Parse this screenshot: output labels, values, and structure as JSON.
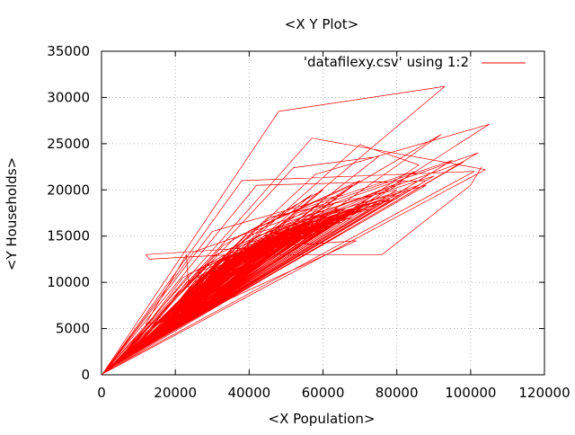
{
  "chart_data": {
    "type": "line",
    "title": "<X Y Plot>",
    "xlabel": "<X Population>",
    "ylabel": "<Y Households>",
    "xlim": [
      0,
      120000
    ],
    "ylim": [
      0,
      35000
    ],
    "xticks": [
      0,
      20000,
      40000,
      60000,
      80000,
      100000,
      120000
    ],
    "yticks": [
      0,
      5000,
      10000,
      15000,
      20000,
      25000,
      30000,
      35000
    ],
    "grid": true,
    "legend_position": "top-right",
    "series": [
      {
        "name": "'datafilexy.csv' using 1:2",
        "color": "#ff0000",
        "x": [
          0,
          93000,
          48000,
          300,
          104000,
          57000,
          400,
          102000,
          25000,
          500,
          86000,
          70000,
          600,
          101000,
          38000,
          700,
          75000,
          52000,
          800,
          88000,
          42000,
          900,
          65000,
          30000,
          1000,
          105000,
          58000,
          1200,
          92000,
          62000,
          1400,
          80000,
          45000,
          1600,
          70000,
          36000,
          1800,
          98000,
          55000,
          2000,
          60000,
          33000,
          2200,
          85000,
          47000,
          2400,
          78000,
          29000,
          2600,
          68000,
          40000,
          2800,
          95000,
          53000,
          3000,
          72000,
          24000,
          3200,
          82000,
          44000,
          3400,
          63000,
          31000,
          3600,
          90000,
          50000,
          3800,
          57000,
          35000,
          4000,
          76000,
          27000,
          4200,
          66000,
          43000,
          4400,
          88000,
          39000,
          4600,
          59000,
          22000,
          4800,
          74000,
          46000,
          5000,
          83000,
          34000,
          5200,
          64000,
          41000,
          5400,
          71000,
          28000,
          5600,
          55000,
          37000,
          5800,
          79000,
          32000,
          6000,
          68000,
          49000,
          6200,
          61000,
          26000,
          6400,
          86000,
          42000,
          6600,
          52000,
          35000,
          6800,
          73000,
          30000,
          7000,
          65000,
          44000,
          7200,
          58000,
          23000,
          7400,
          81000,
          38000,
          7600,
          62000,
          33000,
          7800,
          70000,
          40000,
          8000,
          48000,
          29000,
          8200,
          77000,
          45000,
          8400,
          56000,
          31000,
          8600,
          67000,
          36000,
          8800,
          53000,
          27000,
          9000,
          72000,
          42000,
          9200,
          60000,
          34000,
          9400,
          50000,
          39000,
          9600,
          75000,
          30000,
          9800,
          63000,
          46000,
          10000,
          57000,
          25000,
          10200,
          69000,
          37000,
          10400,
          54000,
          33000,
          10600,
          66000,
          41000,
          10800,
          49000,
          28000,
          11000,
          71000,
          35000,
          11200,
          59000,
          43000,
          11400,
          64000,
          32000,
          11600,
          51000,
          38000,
          11800,
          68000,
          26000,
          12000,
          56000,
          40000,
          12200,
          62000,
          30000,
          12400,
          47000,
          36000,
          12600,
          73000,
          44000,
          12800,
          58000,
          34000,
          13000,
          65000,
          29000,
          13200,
          52000,
          39000,
          13400,
          60000,
          31000,
          13600,
          45000,
          35000,
          13800,
          67000,
          42000,
          14000,
          55000,
          27000,
          14200,
          61000,
          37000,
          14400,
          50000,
          33000,
          14600,
          70000,
          40000,
          14800,
          57000,
          30000,
          15000,
          63000,
          45000,
          15200,
          48000,
          35000,
          15400,
          66000,
          28000,
          15600,
          53000,
          38000,
          15800,
          59000,
          32000,
          16000,
          44000,
          36000,
          16200,
          68000,
          41000,
          16400,
          54000,
          29000,
          16600,
          62000,
          34000,
          16800,
          46000,
          39000,
          17000,
          71000,
          31000,
          17200,
          57000,
          43000,
          17400,
          64000,
          26000,
          17600,
          49000,
          37000,
          17800,
          60000,
          33000,
          18000,
          52000,
          40000,
          18200,
          67000,
          30000,
          18400,
          55000,
          35000,
          18600,
          47000,
          28000,
          18800,
          65000,
          42000,
          19000,
          58000,
          32000,
          19200,
          50000,
          38000,
          19400,
          62000,
          29000,
          19600,
          56000,
          36000,
          19800,
          45000,
          34000,
          20000,
          69000,
          40000,
          20200,
          53000,
          31000,
          20400,
          61000,
          37000,
          20600,
          48000,
          27000,
          20800,
          66000,
          44000,
          21000,
          54000,
          33000,
          21200,
          59000,
          39000,
          21400,
          46000,
          30000,
          21600,
          63000,
          35000,
          21800,
          51000,
          41000,
          22000,
          57000,
          28000,
          22200,
          44000,
          36000,
          22400,
          64000,
          32000,
          22600,
          52000,
          38000,
          22800,
          60000,
          30000,
          23000,
          47000,
          34000,
          23200,
          58000,
          40000,
          23400,
          50000,
          29000,
          23600,
          55000,
          37000,
          23800,
          43000,
          33000,
          24000,
          62000,
          26000,
          24200,
          23000,
          12000,
          24400,
          62000,
          63000,
          24600,
          69000,
          12000,
          13000,
          35000,
          68000,
          76000,
          100000,
          103000
        ],
        "y": [
          0,
          31200,
          28500,
          100,
          22200,
          25600,
          150,
          24000,
          13300,
          200,
          22700,
          24900,
          250,
          22000,
          21000,
          300,
          23600,
          22400,
          350,
          21000,
          20500,
          400,
          19500,
          15500,
          450,
          27100,
          21700,
          500,
          26000,
          19000,
          550,
          20000,
          17000,
          600,
          21000,
          14800,
          650,
          23000,
          17000,
          700,
          20000,
          14000,
          750,
          22000,
          17000,
          800,
          19000,
          12000,
          850,
          20500,
          15500,
          900,
          23200,
          17500,
          950,
          19000,
          11000,
          1000,
          21000,
          15000,
          1050,
          18500,
          13000,
          1100,
          21500,
          16500,
          1150,
          19500,
          13500,
          1200,
          19000,
          11500,
          1250,
          18000,
          14500,
          1300,
          20500,
          15000,
          1350,
          18500,
          10500,
          1400,
          19500,
          15000,
          1450,
          20000,
          13000,
          1500,
          18000,
          14500,
          1550,
          18500,
          11000,
          1600,
          16500,
          13500,
          1650,
          19000,
          12500,
          1700,
          18000,
          16000,
          1750,
          17500,
          11000,
          1800,
          20500,
          15000,
          1850,
          16000,
          12500,
          1900,
          18500,
          12000,
          1950,
          17500,
          15000,
          2000,
          17000,
          10000,
          2050,
          19500,
          14000,
          2100,
          17000,
          12500,
          2150,
          18000,
          13500,
          2200,
          15500,
          11000,
          2250,
          19000,
          15000,
          2300,
          16500,
          12000,
          2350,
          17500,
          13000,
          2400,
          15500,
          10500,
          2450,
          18500,
          14500,
          2500,
          17000,
          12500,
          2550,
          15500,
          13500,
          2600,
          18500,
          11500,
          2650,
          17000,
          15000,
          2700,
          16500,
          10000,
          2750,
          17500,
          13000,
          2800,
          15500,
          12000,
          2850,
          17000,
          14000,
          2900,
          15000,
          10500,
          2950,
          18000,
          12500,
          3000,
          16500,
          14500,
          3050,
          17000,
          11500,
          3100,
          15500,
          13500,
          3150,
          17500,
          10500,
          3200,
          16000,
          14000,
          3250,
          16500,
          11500,
          3300,
          14500,
          12500,
          3350,
          18000,
          14500,
          3400,
          16000,
          12000,
          3450,
          17000,
          11000,
          3500,
          15000,
          13500,
          3550,
          16500,
          11500,
          3600,
          14000,
          12500,
          3650,
          17500,
          14000,
          3700,
          15500,
          10500,
          3750,
          16500,
          12500,
          3800,
          15000,
          12000,
          3850,
          18000,
          13500,
          3900,
          16000,
          11000,
          3950,
          16500,
          14500,
          4000,
          14500,
          12500,
          4050,
          17000,
          10500,
          4100,
          15000,
          13500,
          4150,
          16000,
          11500,
          4200,
          14000,
          12500,
          4250,
          17000,
          14000,
          4300,
          15500,
          11000,
          4350,
          16500,
          12000,
          4400,
          14500,
          13500,
          4450,
          18000,
          11500,
          4500,
          16000,
          14500,
          4550,
          17000,
          10000,
          4600,
          14500,
          13000,
          4650,
          16000,
          12000,
          4700,
          15000,
          13500,
          4750,
          17000,
          11000,
          4800,
          15500,
          12500,
          4850,
          14000,
          10500,
          4900,
          16500,
          14000,
          4950,
          16000,
          11500,
          5000,
          14500,
          13000,
          5050,
          16000,
          11000,
          5100,
          15500,
          12500,
          5150,
          13500,
          12000,
          5200,
          17500,
          13500,
          5250,
          15000,
          11500,
          5300,
          16000,
          12500,
          5350,
          14000,
          10500,
          5400,
          17000,
          14500,
          5450,
          15000,
          12000,
          5500,
          16000,
          13000,
          5550,
          13500,
          11000,
          5600,
          16500,
          12500,
          5650,
          14500,
          13500,
          5700,
          15500,
          10500,
          5750,
          13500,
          12500,
          5800,
          16500,
          11500,
          5850,
          15000,
          12500,
          5900,
          15500,
          11000,
          5950,
          14000,
          12000,
          6000,
          15000,
          13500,
          6050,
          14000,
          10500,
          6100,
          15000,
          12500,
          6150,
          13000,
          11500,
          6200,
          16000,
          10000,
          6250,
          13000,
          5500,
          6300,
          15500,
          15800,
          6350,
          14500,
          13000,
          12500,
          13000,
          13000,
          13000,
          20500,
          22500
        ]
      }
    ]
  }
}
